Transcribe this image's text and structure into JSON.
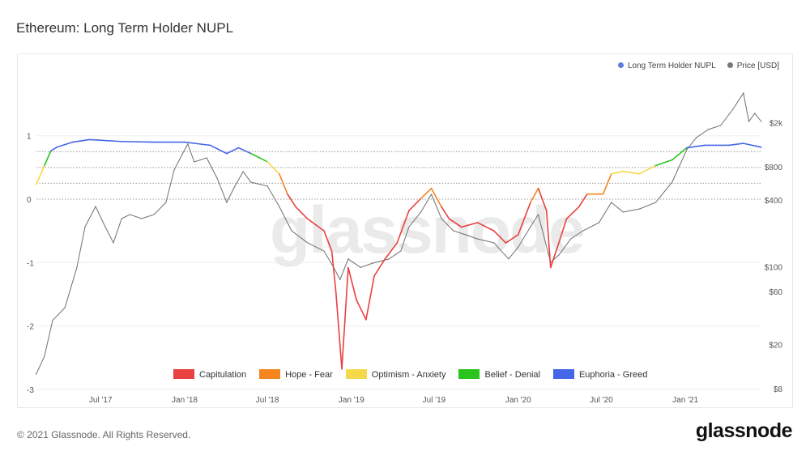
{
  "title": "Ethereum: Long Term Holder NUPL",
  "footer": "© 2021 Glassnode. All Rights Reserved.",
  "logo": "glassnode",
  "watermark": "glassnode",
  "chart_data": {
    "type": "line",
    "title": "Ethereum: Long Term Holder NUPL",
    "legend_placement": "top-right",
    "legend": [
      {
        "name": "Long Term Holder NUPL",
        "color": "#5b7be0"
      },
      {
        "name": "Price [USD]",
        "color": "#777777"
      }
    ],
    "zones": [
      {
        "name": "Capitulation",
        "color": "#e8413f",
        "range": [
          -10,
          0
        ]
      },
      {
        "name": "Hope - Fear",
        "color": "#f5861f",
        "range": [
          0,
          0.25
        ]
      },
      {
        "name": "Optimism - Anxiety",
        "color": "#f5d94a",
        "range": [
          0.25,
          0.5
        ]
      },
      {
        "name": "Belief - Denial",
        "color": "#2ac41c",
        "range": [
          0.5,
          0.75
        ]
      },
      {
        "name": "Euphoria - Greed",
        "color": "#4566e8",
        "range": [
          0.75,
          1
        ]
      }
    ],
    "x_ticks": [
      {
        "label": "Jul '17",
        "date": "2017-07-01"
      },
      {
        "label": "Jan '18",
        "date": "2018-01-01"
      },
      {
        "label": "Jul '18",
        "date": "2018-07-01"
      },
      {
        "label": "Jan '19",
        "date": "2019-01-01"
      },
      {
        "label": "Jul '19",
        "date": "2019-07-01"
      },
      {
        "label": "Jan '20",
        "date": "2020-01-01"
      },
      {
        "label": "Jul '20",
        "date": "2020-07-01"
      },
      {
        "label": "Jan '21",
        "date": "2021-01-01"
      }
    ],
    "y_left": {
      "ticks": [
        "1",
        "0",
        "-1",
        "-2",
        "-3"
      ],
      "tick_values": [
        1,
        0,
        -1,
        -2,
        -3
      ],
      "range": [
        -3,
        1.3
      ],
      "zone_lines": [
        0,
        0.25,
        0.5,
        0.75
      ]
    },
    "y_right": {
      "scale": "log",
      "ticks": [
        "$2k",
        "$800",
        "$400",
        "$100",
        "$60",
        "$20",
        "$8"
      ],
      "tick_values": [
        2000,
        800,
        400,
        100,
        60,
        20,
        8
      ],
      "range": [
        8,
        5000
      ]
    },
    "series": [
      {
        "name": "Long Term Holder NUPL",
        "axis": "left",
        "points": [
          [
            "2017-02-10",
            0.23
          ],
          [
            "2017-02-28",
            0.53
          ],
          [
            "2017-03-14",
            0.76
          ],
          [
            "2017-03-27",
            0.82
          ],
          [
            "2017-05-01",
            0.9
          ],
          [
            "2017-06-06",
            0.94
          ],
          [
            "2017-08-16",
            0.91
          ],
          [
            "2017-10-26",
            0.9
          ],
          [
            "2018-01-01",
            0.9
          ],
          [
            "2018-02-26",
            0.85
          ],
          [
            "2018-04-03",
            0.72
          ],
          [
            "2018-04-29",
            0.81
          ],
          [
            "2018-05-26",
            0.72
          ],
          [
            "2018-07-01",
            0.59
          ],
          [
            "2018-07-27",
            0.4
          ],
          [
            "2018-08-14",
            0.08
          ],
          [
            "2018-09-01",
            -0.12
          ],
          [
            "2018-09-27",
            -0.31
          ],
          [
            "2018-11-02",
            -0.5
          ],
          [
            "2018-11-19",
            -0.82
          ],
          [
            "2018-11-28",
            -1.46
          ],
          [
            "2018-12-11",
            -2.68
          ],
          [
            "2018-12-25",
            -1.08
          ],
          [
            "2019-01-12",
            -1.59
          ],
          [
            "2019-02-02",
            -1.9
          ],
          [
            "2019-02-20",
            -1.21
          ],
          [
            "2019-03-15",
            -0.95
          ],
          [
            "2019-04-11",
            -0.69
          ],
          [
            "2019-05-07",
            -0.18
          ],
          [
            "2019-06-02",
            0.01
          ],
          [
            "2019-06-25",
            0.17
          ],
          [
            "2019-07-17",
            -0.12
          ],
          [
            "2019-08-03",
            -0.31
          ],
          [
            "2019-08-30",
            -0.44
          ],
          [
            "2019-10-04",
            -0.37
          ],
          [
            "2019-11-09",
            -0.5
          ],
          [
            "2019-12-05",
            -0.69
          ],
          [
            "2020-01-01",
            -0.56
          ],
          [
            "2020-01-28",
            -0.05
          ],
          [
            "2020-02-14",
            0.17
          ],
          [
            "2020-03-03",
            -0.18
          ],
          [
            "2020-03-12",
            -1.08
          ],
          [
            "2020-03-30",
            -0.69
          ],
          [
            "2020-04-16",
            -0.31
          ],
          [
            "2020-05-13",
            -0.12
          ],
          [
            "2020-05-31",
            0.08
          ],
          [
            "2020-07-05",
            0.08
          ],
          [
            "2020-07-23",
            0.4
          ],
          [
            "2020-08-18",
            0.44
          ],
          [
            "2020-09-23",
            0.4
          ],
          [
            "2020-10-28",
            0.53
          ],
          [
            "2020-12-03",
            0.62
          ],
          [
            "2021-01-04",
            0.81
          ],
          [
            "2021-02-12",
            0.85
          ],
          [
            "2021-04-06",
            0.85
          ],
          [
            "2021-05-08",
            0.88
          ],
          [
            "2021-06-16",
            0.82
          ]
        ]
      },
      {
        "name": "Price [USD]",
        "axis": "right",
        "points": [
          [
            "2017-02-10",
            10.8
          ],
          [
            "2017-02-28",
            15.7
          ],
          [
            "2017-03-18",
            33
          ],
          [
            "2017-04-14",
            43
          ],
          [
            "2017-05-10",
            99
          ],
          [
            "2017-05-28",
            230
          ],
          [
            "2017-06-20",
            351
          ],
          [
            "2017-07-11",
            230
          ],
          [
            "2017-07-29",
            165
          ],
          [
            "2017-08-16",
            273
          ],
          [
            "2017-09-03",
            297
          ],
          [
            "2017-09-29",
            273
          ],
          [
            "2017-10-26",
            297
          ],
          [
            "2017-11-21",
            382
          ],
          [
            "2017-12-09",
            748
          ],
          [
            "2017-12-27",
            1047
          ],
          [
            "2018-01-08",
            1280
          ],
          [
            "2018-01-22",
            885
          ],
          [
            "2018-02-18",
            962
          ],
          [
            "2018-03-13",
            632
          ],
          [
            "2018-04-03",
            382
          ],
          [
            "2018-04-21",
            535
          ],
          [
            "2018-05-09",
            723
          ],
          [
            "2018-05-26",
            581
          ],
          [
            "2018-07-01",
            535
          ],
          [
            "2018-07-27",
            351
          ],
          [
            "2018-08-23",
            212
          ],
          [
            "2018-09-27",
            165
          ],
          [
            "2018-11-02",
            139
          ],
          [
            "2018-11-23",
            99
          ],
          [
            "2018-12-07",
            77
          ],
          [
            "2018-12-25",
            118
          ],
          [
            "2019-01-21",
            99
          ],
          [
            "2019-02-16",
            108
          ],
          [
            "2019-03-24",
            118
          ],
          [
            "2019-04-19",
            139
          ],
          [
            "2019-05-07",
            230
          ],
          [
            "2019-06-02",
            312
          ],
          [
            "2019-06-25",
            452
          ],
          [
            "2019-07-17",
            273
          ],
          [
            "2019-08-12",
            212
          ],
          [
            "2019-09-08",
            195
          ],
          [
            "2019-10-04",
            179
          ],
          [
            "2019-11-09",
            165
          ],
          [
            "2019-12-11",
            118
          ],
          [
            "2020-01-01",
            151
          ],
          [
            "2020-01-28",
            230
          ],
          [
            "2020-02-14",
            297
          ],
          [
            "2020-03-12",
            110
          ],
          [
            "2020-03-30",
            128
          ],
          [
            "2020-04-25",
            179
          ],
          [
            "2020-05-22",
            212
          ],
          [
            "2020-06-26",
            251
          ],
          [
            "2020-07-23",
            382
          ],
          [
            "2020-08-18",
            312
          ],
          [
            "2020-09-23",
            334
          ],
          [
            "2020-10-28",
            382
          ],
          [
            "2020-12-03",
            581
          ],
          [
            "2021-01-04",
            1138
          ],
          [
            "2021-01-25",
            1466
          ],
          [
            "2021-02-20",
            1734
          ],
          [
            "2021-03-19",
            1886
          ],
          [
            "2021-04-15",
            2640
          ],
          [
            "2021-05-08",
            3690
          ],
          [
            "2021-05-20",
            2050
          ],
          [
            "2021-06-02",
            2427
          ],
          [
            "2021-06-16",
            2050
          ]
        ]
      }
    ]
  }
}
